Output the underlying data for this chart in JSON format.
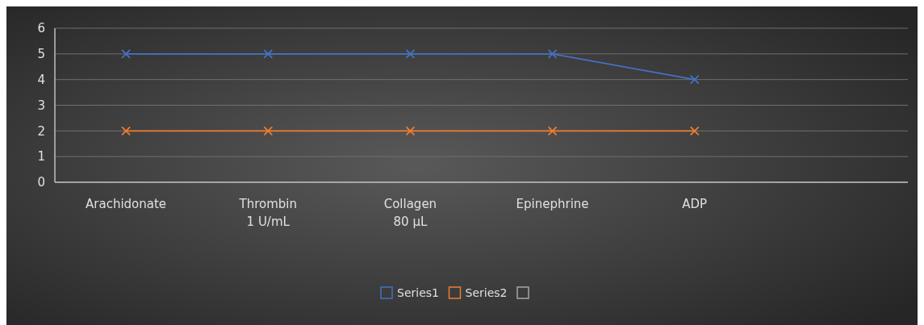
{
  "chart_data": {
    "type": "line",
    "categories": [
      "Arachidonate",
      "Thrombin\n1 U/mL",
      "Collagen\n80 µL",
      "Epinephrine",
      "ADP",
      null
    ],
    "series": [
      {
        "name": "Series1",
        "color": "#4472c4",
        "values": [
          5,
          5,
          5,
          5,
          4,
          null
        ]
      },
      {
        "name": "Series2",
        "color": "#ed7d31",
        "values": [
          2,
          2,
          2,
          2,
          2,
          null
        ]
      },
      {
        "color": "#a6a6a6",
        "values": [
          null,
          null,
          null,
          null,
          null,
          null
        ]
      }
    ],
    "ylim": [
      0,
      6
    ],
    "yticks": [
      0,
      1,
      2,
      3,
      4,
      5,
      6
    ],
    "grid": "y",
    "legend": "bottom",
    "marker": "cross",
    "line_style": "solid"
  }
}
